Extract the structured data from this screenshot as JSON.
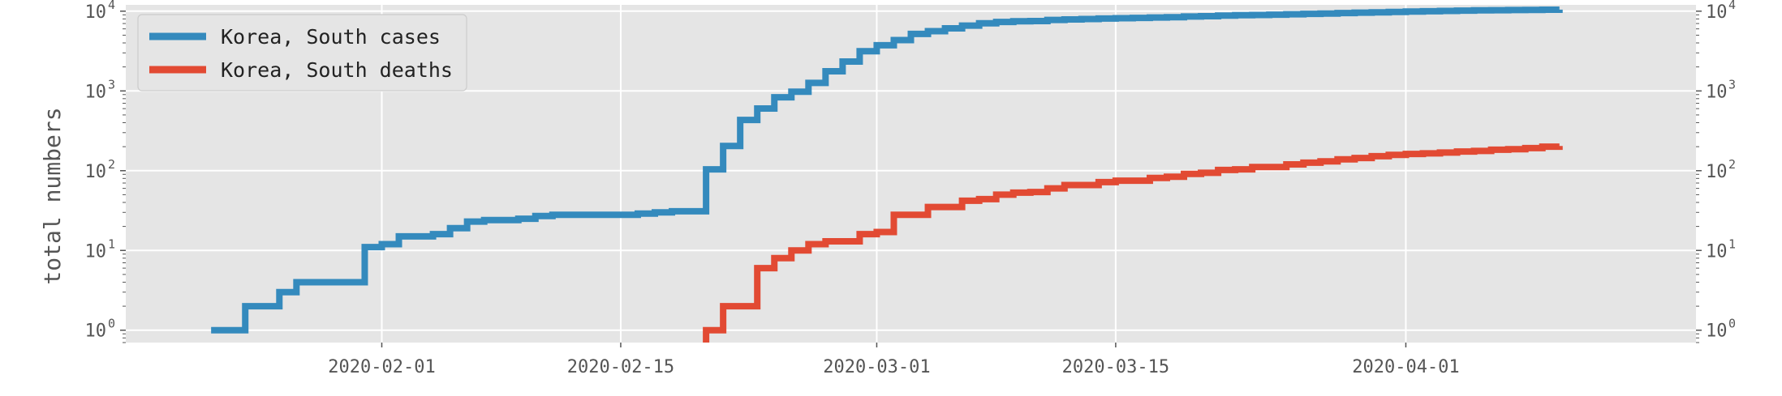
{
  "chart_data": {
    "type": "line",
    "step": true,
    "title": "",
    "xlabel": "",
    "ylabel": "total numbers",
    "yscale": "log",
    "ylim": [
      0.7,
      12000
    ],
    "xlim": [
      "2020-01-17",
      "2020-04-18"
    ],
    "grid": true,
    "legend_position": "top-left",
    "background": "#e5e5e5",
    "x_ticks": [
      "2020-02-01",
      "2020-02-15",
      "2020-03-01",
      "2020-03-15",
      "2020-04-01"
    ],
    "y_ticks": [
      {
        "value": 1,
        "base": "10",
        "exp": "0"
      },
      {
        "value": 10,
        "base": "10",
        "exp": "1"
      },
      {
        "value": 100,
        "base": "10",
        "exp": "2"
      },
      {
        "value": 1000,
        "base": "10",
        "exp": "3"
      },
      {
        "value": 10000,
        "base": "10",
        "exp": "4"
      }
    ],
    "series": [
      {
        "name": "Korea, South cases",
        "color": "#348abd",
        "points": [
          [
            "2020-01-22",
            1
          ],
          [
            "2020-01-23",
            1
          ],
          [
            "2020-01-24",
            2
          ],
          [
            "2020-01-25",
            2
          ],
          [
            "2020-01-26",
            3
          ],
          [
            "2020-01-27",
            4
          ],
          [
            "2020-01-28",
            4
          ],
          [
            "2020-01-29",
            4
          ],
          [
            "2020-01-30",
            4
          ],
          [
            "2020-01-31",
            11
          ],
          [
            "2020-02-01",
            12
          ],
          [
            "2020-02-02",
            15
          ],
          [
            "2020-02-03",
            15
          ],
          [
            "2020-02-04",
            16
          ],
          [
            "2020-02-05",
            19
          ],
          [
            "2020-02-06",
            23
          ],
          [
            "2020-02-07",
            24
          ],
          [
            "2020-02-08",
            24
          ],
          [
            "2020-02-09",
            25
          ],
          [
            "2020-02-10",
            27
          ],
          [
            "2020-02-11",
            28
          ],
          [
            "2020-02-12",
            28
          ],
          [
            "2020-02-13",
            28
          ],
          [
            "2020-02-14",
            28
          ],
          [
            "2020-02-15",
            28
          ],
          [
            "2020-02-16",
            29
          ],
          [
            "2020-02-17",
            30
          ],
          [
            "2020-02-18",
            31
          ],
          [
            "2020-02-19",
            31
          ],
          [
            "2020-02-20",
            104
          ],
          [
            "2020-02-21",
            204
          ],
          [
            "2020-02-22",
            433
          ],
          [
            "2020-02-23",
            602
          ],
          [
            "2020-02-24",
            833
          ],
          [
            "2020-02-25",
            977
          ],
          [
            "2020-02-26",
            1261
          ],
          [
            "2020-02-27",
            1766
          ],
          [
            "2020-02-28",
            2337
          ],
          [
            "2020-02-29",
            3150
          ],
          [
            "2020-03-01",
            3736
          ],
          [
            "2020-03-02",
            4335
          ],
          [
            "2020-03-03",
            5186
          ],
          [
            "2020-03-04",
            5621
          ],
          [
            "2020-03-05",
            6088
          ],
          [
            "2020-03-06",
            6593
          ],
          [
            "2020-03-07",
            7041
          ],
          [
            "2020-03-08",
            7314
          ],
          [
            "2020-03-09",
            7478
          ],
          [
            "2020-03-10",
            7513
          ],
          [
            "2020-03-11",
            7755
          ],
          [
            "2020-03-12",
            7869
          ],
          [
            "2020-03-13",
            7979
          ],
          [
            "2020-03-14",
            8086
          ],
          [
            "2020-03-15",
            8162
          ],
          [
            "2020-03-16",
            8236
          ],
          [
            "2020-03-17",
            8320
          ],
          [
            "2020-03-18",
            8413
          ],
          [
            "2020-03-19",
            8565
          ],
          [
            "2020-03-20",
            8652
          ],
          [
            "2020-03-21",
            8799
          ],
          [
            "2020-03-22",
            8897
          ],
          [
            "2020-03-23",
            8961
          ],
          [
            "2020-03-24",
            9037
          ],
          [
            "2020-03-25",
            9137
          ],
          [
            "2020-03-26",
            9241
          ],
          [
            "2020-03-27",
            9332
          ],
          [
            "2020-03-28",
            9478
          ],
          [
            "2020-03-29",
            9583
          ],
          [
            "2020-03-30",
            9661
          ],
          [
            "2020-03-31",
            9786
          ],
          [
            "2020-04-01",
            9887
          ],
          [
            "2020-04-02",
            9976
          ],
          [
            "2020-04-03",
            10062
          ],
          [
            "2020-04-04",
            10156
          ],
          [
            "2020-04-05",
            10237
          ],
          [
            "2020-04-06",
            10284
          ],
          [
            "2020-04-07",
            10331
          ],
          [
            "2020-04-08",
            10384
          ],
          [
            "2020-04-09",
            10423
          ],
          [
            "2020-04-10",
            10450
          ]
        ]
      },
      {
        "name": "Korea, South deaths",
        "color": "#e24a33",
        "points": [
          [
            "2020-02-20",
            1
          ],
          [
            "2020-02-21",
            2
          ],
          [
            "2020-02-22",
            2
          ],
          [
            "2020-02-23",
            6
          ],
          [
            "2020-02-24",
            8
          ],
          [
            "2020-02-25",
            10
          ],
          [
            "2020-02-26",
            12
          ],
          [
            "2020-02-27",
            13
          ],
          [
            "2020-02-28",
            13
          ],
          [
            "2020-02-29",
            16
          ],
          [
            "2020-03-01",
            17
          ],
          [
            "2020-03-02",
            28
          ],
          [
            "2020-03-03",
            28
          ],
          [
            "2020-03-04",
            35
          ],
          [
            "2020-03-05",
            35
          ],
          [
            "2020-03-06",
            42
          ],
          [
            "2020-03-07",
            44
          ],
          [
            "2020-03-08",
            50
          ],
          [
            "2020-03-09",
            53
          ],
          [
            "2020-03-10",
            54
          ],
          [
            "2020-03-11",
            60
          ],
          [
            "2020-03-12",
            66
          ],
          [
            "2020-03-13",
            66
          ],
          [
            "2020-03-14",
            72
          ],
          [
            "2020-03-15",
            75
          ],
          [
            "2020-03-16",
            75
          ],
          [
            "2020-03-17",
            81
          ],
          [
            "2020-03-18",
            84
          ],
          [
            "2020-03-19",
            91
          ],
          [
            "2020-03-20",
            94
          ],
          [
            "2020-03-21",
            102
          ],
          [
            "2020-03-22",
            104
          ],
          [
            "2020-03-23",
            111
          ],
          [
            "2020-03-24",
            111
          ],
          [
            "2020-03-25",
            120
          ],
          [
            "2020-03-26",
            126
          ],
          [
            "2020-03-27",
            131
          ],
          [
            "2020-03-28",
            139
          ],
          [
            "2020-03-29",
            144
          ],
          [
            "2020-03-30",
            152
          ],
          [
            "2020-03-31",
            158
          ],
          [
            "2020-04-01",
            162
          ],
          [
            "2020-04-02",
            165
          ],
          [
            "2020-04-03",
            169
          ],
          [
            "2020-04-04",
            174
          ],
          [
            "2020-04-05",
            177
          ],
          [
            "2020-04-06",
            183
          ],
          [
            "2020-04-07",
            186
          ],
          [
            "2020-04-08",
            192
          ],
          [
            "2020-04-09",
            200
          ],
          [
            "2020-04-10",
            204
          ]
        ]
      }
    ]
  }
}
